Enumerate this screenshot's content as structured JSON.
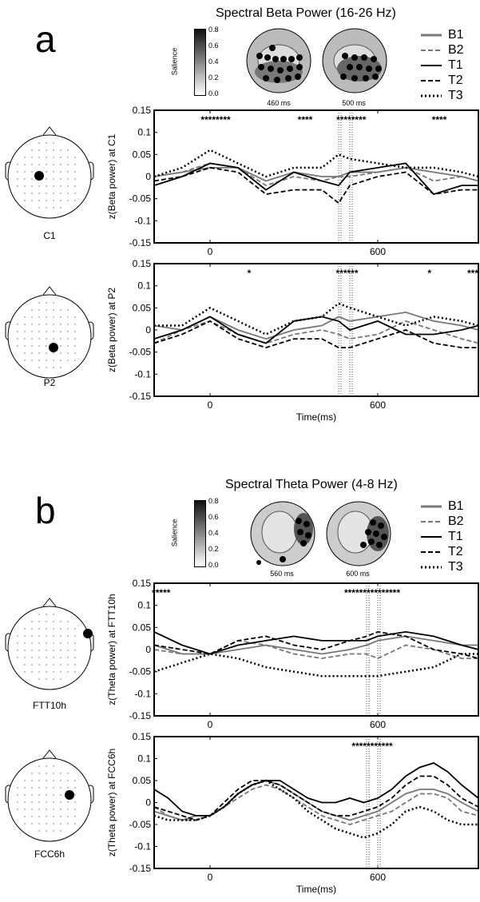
{
  "figure": {
    "panels": [
      {
        "letter": "a",
        "title": "Spectral Beta Power (16-26 Hz)",
        "colorbar": {
          "label": "Salience",
          "ticks": [
            "0.8",
            "0.6",
            "0.4",
            "0.2",
            "0.0"
          ]
        },
        "topomaps": [
          {
            "label": "460 ms"
          },
          {
            "label": "500 ms"
          }
        ],
        "legend": [
          "B1",
          "B2",
          "T1",
          "T2",
          "T3"
        ],
        "electrodes": [
          {
            "label": "C1"
          },
          {
            "label": "P2"
          }
        ]
      },
      {
        "letter": "b",
        "title": "Spectral Theta Power (4-8 Hz)",
        "colorbar": {
          "label": "Salience",
          "ticks": [
            "0.8",
            "0.6",
            "0.4",
            "0.2",
            "0.0"
          ]
        },
        "topomaps": [
          {
            "label": "560 ms"
          },
          {
            "label": "600 ms"
          }
        ],
        "legend": [
          "B1",
          "B2",
          "T1",
          "T2",
          "T3"
        ],
        "electrodes": [
          {
            "label": "FTT10h"
          },
          {
            "label": "FCC6h"
          }
        ]
      }
    ],
    "series_styles": [
      {
        "name": "B1",
        "color": "#777777",
        "dash": "solid"
      },
      {
        "name": "B2",
        "color": "#777777",
        "dash": "dashed"
      },
      {
        "name": "T1",
        "color": "#000000",
        "dash": "solid"
      },
      {
        "name": "T2",
        "color": "#000000",
        "dash": "dashed"
      },
      {
        "name": "T3",
        "color": "#000000",
        "dash": "dotted"
      }
    ]
  },
  "chart_data": [
    {
      "type": "line",
      "ylabel": "z(Beta power) at C1",
      "xlabel": "",
      "xlim": [
        -200,
        960
      ],
      "ylim": [
        -0.15,
        0.15
      ],
      "xticks": [
        0,
        600
      ],
      "yticks": [
        -0.15,
        -0.1,
        -0.05,
        0,
        0.05,
        0.1,
        0.15
      ],
      "ytick_labels": [
        "-0.15",
        "-0.1",
        "-0.05",
        "0",
        "0.05",
        "0.1",
        "0.15"
      ],
      "xtick_labels": [
        "0",
        "600"
      ],
      "vlines": [
        460,
        500
      ],
      "significance": [
        "********",
        "****",
        "********",
        "****"
      ],
      "significance_x": [
        20,
        340,
        505,
        820
      ],
      "x": [
        -200,
        -100,
        0,
        100,
        200,
        300,
        400,
        460,
        500,
        600,
        700,
        800,
        900,
        960
      ],
      "series": [
        {
          "name": "B1",
          "values": [
            0.0,
            0.01,
            0.02,
            0.02,
            -0.01,
            0.01,
            0.0,
            0.0,
            0.01,
            0.01,
            0.02,
            0.01,
            0.0,
            -0.01
          ]
        },
        {
          "name": "B2",
          "values": [
            0.0,
            0.01,
            0.03,
            0.02,
            -0.02,
            0.0,
            -0.01,
            0.0,
            0.0,
            0.01,
            0.02,
            -0.01,
            0.0,
            -0.01
          ]
        },
        {
          "name": "T1",
          "values": [
            -0.02,
            0.0,
            0.03,
            0.02,
            -0.03,
            0.01,
            -0.01,
            -0.02,
            0.01,
            0.02,
            0.03,
            -0.04,
            -0.02,
            -0.02
          ]
        },
        {
          "name": "T2",
          "values": [
            -0.01,
            0.0,
            0.02,
            0.01,
            -0.04,
            -0.03,
            -0.03,
            -0.06,
            -0.02,
            0.0,
            0.01,
            -0.04,
            -0.03,
            -0.03
          ]
        },
        {
          "name": "T3",
          "values": [
            0.0,
            0.02,
            0.06,
            0.03,
            0.0,
            0.02,
            0.02,
            0.05,
            0.04,
            0.03,
            0.02,
            0.02,
            0.01,
            0.0
          ]
        }
      ]
    },
    {
      "type": "line",
      "ylabel": "z(Beta power) at P2",
      "xlabel": "Time(ms)",
      "xlim": [
        -200,
        960
      ],
      "ylim": [
        -0.15,
        0.15
      ],
      "xticks": [
        0,
        600
      ],
      "yticks": [
        -0.15,
        -0.1,
        -0.05,
        0,
        0.05,
        0.1,
        0.15
      ],
      "ytick_labels": [
        "-0.15",
        "-0.1",
        "-0.05",
        "0",
        "0.05",
        "0.1",
        "0.15"
      ],
      "xtick_labels": [
        "0",
        "600"
      ],
      "vlines": [
        460,
        500
      ],
      "significance": [
        "*",
        "******",
        "*",
        "***"
      ],
      "significance_x": [
        140,
        490,
        785,
        940
      ],
      "x": [
        -200,
        -100,
        0,
        100,
        200,
        300,
        400,
        460,
        500,
        600,
        700,
        800,
        900,
        960
      ],
      "series": [
        {
          "name": "B1",
          "values": [
            0.01,
            0.0,
            0.03,
            0.0,
            -0.02,
            0.0,
            0.01,
            0.03,
            0.02,
            0.03,
            0.04,
            0.02,
            0.01,
            0.0
          ]
        },
        {
          "name": "B2",
          "values": [
            -0.03,
            0.0,
            0.02,
            -0.01,
            -0.03,
            -0.01,
            0.0,
            -0.01,
            -0.02,
            -0.01,
            0.02,
            0.0,
            -0.02,
            -0.03
          ]
        },
        {
          "name": "T1",
          "values": [
            -0.02,
            0.0,
            0.03,
            -0.01,
            -0.03,
            0.02,
            0.03,
            0.02,
            0.0,
            0.02,
            -0.01,
            -0.01,
            0.0,
            0.01
          ]
        },
        {
          "name": "T2",
          "values": [
            -0.03,
            -0.01,
            0.02,
            -0.02,
            -0.04,
            -0.02,
            -0.02,
            -0.04,
            -0.04,
            -0.02,
            0.0,
            -0.03,
            -0.04,
            -0.04
          ]
        },
        {
          "name": "T3",
          "values": [
            0.01,
            0.01,
            0.05,
            0.02,
            -0.01,
            0.02,
            0.03,
            0.06,
            0.05,
            0.03,
            0.01,
            0.03,
            0.02,
            0.01
          ]
        }
      ]
    },
    {
      "type": "line",
      "ylabel": "z(Theta power) at FTT10h",
      "xlabel": "",
      "xlim": [
        -200,
        960
      ],
      "ylim": [
        -0.15,
        0.15
      ],
      "xticks": [
        0,
        600
      ],
      "yticks": [
        -0.15,
        -0.1,
        -0.05,
        0,
        0.05,
        0.1,
        0.15
      ],
      "ytick_labels": [
        "-0.15",
        "-0.1",
        "-0.05",
        "0",
        "0.05",
        "0.1",
        "0.15"
      ],
      "xtick_labels": [
        "0",
        "600"
      ],
      "vlines": [
        560,
        600
      ],
      "significance": [
        "*****",
        "***************"
      ],
      "significance_x": [
        -175,
        580
      ],
      "x": [
        -200,
        -100,
        0,
        100,
        200,
        300,
        400,
        500,
        560,
        600,
        700,
        800,
        900,
        960
      ],
      "series": [
        {
          "name": "B1",
          "values": [
            0.01,
            -0.01,
            -0.01,
            0.0,
            0.01,
            0.0,
            -0.01,
            0.0,
            0.01,
            0.02,
            0.03,
            0.02,
            0.01,
            0.01
          ]
        },
        {
          "name": "B2",
          "values": [
            0.0,
            -0.01,
            -0.01,
            0.02,
            0.01,
            -0.01,
            -0.02,
            -0.01,
            -0.01,
            -0.02,
            0.01,
            0.0,
            -0.02,
            -0.02
          ]
        },
        {
          "name": "T1",
          "values": [
            0.04,
            0.01,
            -0.01,
            0.01,
            0.02,
            0.03,
            0.02,
            0.02,
            0.02,
            0.03,
            0.04,
            0.03,
            0.01,
            0.0
          ]
        },
        {
          "name": "T2",
          "values": [
            0.01,
            0.0,
            -0.01,
            0.02,
            0.03,
            0.01,
            0.0,
            0.02,
            0.03,
            0.04,
            0.03,
            0.0,
            -0.01,
            -0.02
          ]
        },
        {
          "name": "T3",
          "values": [
            -0.05,
            -0.03,
            -0.01,
            -0.02,
            -0.04,
            -0.05,
            -0.06,
            -0.06,
            -0.06,
            -0.06,
            -0.05,
            -0.04,
            -0.01,
            -0.01
          ]
        }
      ]
    },
    {
      "type": "line",
      "ylabel": "z(Theta power) at FCC6h",
      "xlabel": "Time(ms)",
      "xlim": [
        -200,
        960
      ],
      "ylim": [
        -0.15,
        0.15
      ],
      "xticks": [
        0,
        600
      ],
      "yticks": [
        -0.15,
        -0.1,
        -0.05,
        0,
        0.05,
        0.1,
        0.15
      ],
      "ytick_labels": [
        "-0.15",
        "-0.1",
        "-0.05",
        "0",
        "0.05",
        "0.1",
        "0.15"
      ],
      "xtick_labels": [
        "0",
        "600"
      ],
      "vlines": [
        560,
        600
      ],
      "significance": [
        "***********"
      ],
      "significance_x": [
        580
      ],
      "x": [
        -200,
        -150,
        -100,
        -50,
        0,
        50,
        100,
        150,
        200,
        250,
        300,
        350,
        400,
        450,
        500,
        550,
        600,
        650,
        700,
        750,
        800,
        850,
        900,
        960
      ],
      "series": [
        {
          "name": "B1",
          "values": [
            -0.02,
            -0.03,
            -0.04,
            -0.03,
            -0.03,
            -0.01,
            0.02,
            0.04,
            0.05,
            0.04,
            0.02,
            0.0,
            -0.02,
            -0.03,
            -0.04,
            -0.03,
            -0.02,
            0.0,
            0.02,
            0.03,
            0.03,
            0.02,
            0.0,
            -0.02
          ]
        },
        {
          "name": "B2",
          "values": [
            -0.01,
            -0.03,
            -0.04,
            -0.04,
            -0.03,
            -0.01,
            0.01,
            0.03,
            0.04,
            0.03,
            0.01,
            -0.01,
            -0.03,
            -0.04,
            -0.05,
            -0.04,
            -0.03,
            -0.02,
            0.0,
            0.02,
            0.02,
            0.01,
            -0.02,
            -0.03
          ]
        },
        {
          "name": "T1",
          "values": [
            0.03,
            0.01,
            -0.02,
            -0.03,
            -0.03,
            -0.01,
            0.02,
            0.04,
            0.05,
            0.05,
            0.03,
            0.01,
            0.0,
            0.0,
            0.01,
            0.0,
            0.01,
            0.03,
            0.06,
            0.08,
            0.09,
            0.07,
            0.04,
            0.01
          ]
        },
        {
          "name": "T2",
          "values": [
            -0.01,
            -0.02,
            -0.03,
            -0.04,
            -0.03,
            0.0,
            0.03,
            0.05,
            0.05,
            0.04,
            0.02,
            0.0,
            -0.02,
            -0.03,
            -0.03,
            -0.02,
            -0.01,
            0.01,
            0.04,
            0.06,
            0.06,
            0.04,
            0.01,
            -0.01
          ]
        },
        {
          "name": "T3",
          "values": [
            -0.03,
            -0.04,
            -0.04,
            -0.04,
            -0.03,
            -0.01,
            0.02,
            0.04,
            0.05,
            0.03,
            0.01,
            -0.02,
            -0.04,
            -0.06,
            -0.07,
            -0.08,
            -0.07,
            -0.05,
            -0.02,
            -0.01,
            -0.02,
            -0.04,
            -0.05,
            -0.05
          ]
        }
      ]
    }
  ]
}
